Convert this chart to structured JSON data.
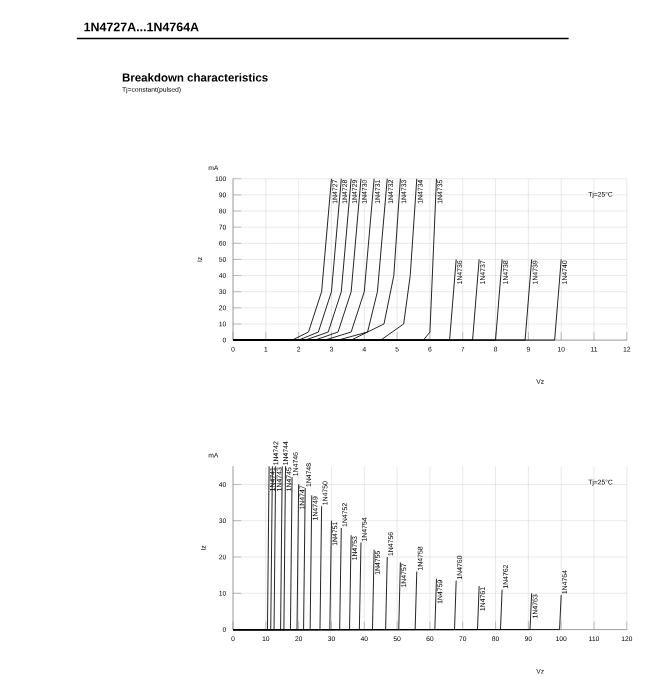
{
  "chart_data": [
    {
      "type": "line",
      "title": "Breakdown characteristics",
      "subtitle": "Tj=constant(pulsed)",
      "xlabel": "Vz",
      "ylabel": "Iz",
      "annotations": [
        "1N4727A...1N4764A",
        "mA",
        "Tj=25°C"
      ],
      "xlim": [
        0,
        12
      ],
      "ylim": [
        0,
        100
      ],
      "xticks": [
        0,
        1,
        2,
        3,
        4,
        5,
        6,
        7,
        8,
        9,
        10,
        11,
        12
      ],
      "yticks": [
        0,
        10,
        20,
        30,
        40,
        50,
        60,
        70,
        80,
        90,
        100
      ],
      "grid": true,
      "series": [
        {
          "name": "1N4727",
          "color": "#000000",
          "x": [
            0,
            1.8,
            2.3,
            2.7,
            3.0
          ],
          "values": [
            0,
            0,
            5,
            30,
            100
          ]
        },
        {
          "name": "1N4728",
          "color": "#000000",
          "x": [
            0,
            2.0,
            2.6,
            3.0,
            3.3
          ],
          "values": [
            0,
            0,
            5,
            30,
            100
          ]
        },
        {
          "name": "1N4729",
          "color": "#000000",
          "x": [
            0,
            2.2,
            2.9,
            3.3,
            3.6
          ],
          "values": [
            0,
            0,
            5,
            30,
            100
          ]
        },
        {
          "name": "1N4730",
          "color": "#000000",
          "x": [
            0,
            2.5,
            3.2,
            3.6,
            3.9
          ],
          "values": [
            0,
            0,
            5,
            30,
            100
          ]
        },
        {
          "name": "1N4731",
          "color": "#000000",
          "x": [
            0,
            2.8,
            3.6,
            4.0,
            4.3
          ],
          "values": [
            0,
            0,
            5,
            30,
            100
          ]
        },
        {
          "name": "1N4732",
          "color": "#000000",
          "x": [
            0,
            3.2,
            4.1,
            4.4,
            4.7
          ],
          "values": [
            0,
            0,
            5,
            30,
            100
          ]
        },
        {
          "name": "1N4733",
          "color": "#000000",
          "x": [
            0,
            3.6,
            4.6,
            4.9,
            5.1
          ],
          "values": [
            0,
            0,
            10,
            40,
            100
          ]
        },
        {
          "name": "1N4734",
          "color": "#000000",
          "x": [
            0,
            4.5,
            5.2,
            5.4,
            5.6
          ],
          "values": [
            0,
            0,
            10,
            40,
            100
          ]
        },
        {
          "name": "1N4735",
          "color": "#000000",
          "x": [
            0,
            5.8,
            6.0,
            6.2
          ],
          "values": [
            0,
            0,
            5,
            100
          ]
        },
        {
          "name": "1N4736",
          "color": "#000000",
          "x": [
            0,
            6.6,
            6.8
          ],
          "values": [
            0,
            0,
            50
          ]
        },
        {
          "name": "1N4737",
          "color": "#000000",
          "x": [
            0,
            7.3,
            7.5
          ],
          "values": [
            0,
            0,
            50
          ]
        },
        {
          "name": "1N4738",
          "color": "#000000",
          "x": [
            0,
            8.0,
            8.2
          ],
          "values": [
            0,
            0,
            50
          ]
        },
        {
          "name": "1N4739",
          "color": "#000000",
          "x": [
            0,
            8.9,
            9.1
          ],
          "values": [
            0,
            0,
            50
          ]
        },
        {
          "name": "1N4740",
          "color": "#000000",
          "x": [
            0,
            9.8,
            10.0
          ],
          "values": [
            0,
            0,
            50
          ]
        }
      ]
    },
    {
      "type": "line",
      "xlabel": "Vz",
      "ylabel": "Iz",
      "annotations": [
        "mA",
        "Tj=25°C"
      ],
      "xlim": [
        0,
        120
      ],
      "ylim": [
        0,
        45
      ],
      "xticks": [
        0,
        10,
        20,
        30,
        40,
        50,
        60,
        70,
        80,
        90,
        100,
        110,
        120
      ],
      "yticks": [
        0,
        10,
        20,
        30,
        40
      ],
      "grid": true,
      "series": [
        {
          "name": "1N4741",
          "color": "#000000",
          "x": [
            0,
            10.5,
            11
          ],
          "values": [
            0,
            0,
            45
          ]
        },
        {
          "name": "1N4742",
          "color": "#000000",
          "x": [
            0,
            11.5,
            12
          ],
          "values": [
            0,
            0,
            45
          ]
        },
        {
          "name": "1N4743",
          "color": "#000000",
          "x": [
            0,
            12.5,
            13
          ],
          "values": [
            0,
            0,
            45
          ]
        },
        {
          "name": "1N4744",
          "color": "#000000",
          "x": [
            0,
            14.5,
            15
          ],
          "values": [
            0,
            0,
            45
          ]
        },
        {
          "name": "1N4745",
          "color": "#000000",
          "x": [
            0,
            15.5,
            16
          ],
          "values": [
            0,
            0,
            45
          ]
        },
        {
          "name": "1N4746",
          "color": "#000000",
          "x": [
            0,
            17.5,
            18
          ],
          "values": [
            0,
            0,
            42
          ]
        },
        {
          "name": "1N4747",
          "color": "#000000",
          "x": [
            0,
            19.5,
            20
          ],
          "values": [
            0,
            0,
            40
          ]
        },
        {
          "name": "1N4748",
          "color": "#000000",
          "x": [
            0,
            21.5,
            22
          ],
          "values": [
            0,
            0,
            39
          ]
        },
        {
          "name": "1N4749",
          "color": "#000000",
          "x": [
            0,
            23.5,
            24
          ],
          "values": [
            0,
            0,
            37
          ]
        },
        {
          "name": "1N4750",
          "color": "#000000",
          "x": [
            0,
            26.5,
            27
          ],
          "values": [
            0,
            0,
            34
          ]
        },
        {
          "name": "1N4751",
          "color": "#000000",
          "x": [
            0,
            29.5,
            30
          ],
          "values": [
            0,
            0,
            30
          ]
        },
        {
          "name": "1N4752",
          "color": "#000000",
          "x": [
            0,
            32.5,
            33
          ],
          "values": [
            0,
            0,
            28
          ]
        },
        {
          "name": "1N4753",
          "color": "#000000",
          "x": [
            0,
            35.5,
            36
          ],
          "values": [
            0,
            0,
            26
          ]
        },
        {
          "name": "1N4754",
          "color": "#000000",
          "x": [
            0,
            38.5,
            39
          ],
          "values": [
            0,
            0,
            24
          ]
        },
        {
          "name": "1N4755",
          "color": "#000000",
          "x": [
            0,
            42.5,
            43
          ],
          "values": [
            0,
            0,
            22
          ]
        },
        {
          "name": "1N4756",
          "color": "#000000",
          "x": [
            0,
            46.5,
            47
          ],
          "values": [
            0,
            0,
            20
          ]
        },
        {
          "name": "1N4757",
          "color": "#000000",
          "x": [
            0,
            50.5,
            51
          ],
          "values": [
            0,
            0,
            18.5
          ]
        },
        {
          "name": "1N4758",
          "color": "#000000",
          "x": [
            0,
            55.5,
            56
          ],
          "values": [
            0,
            0,
            16
          ]
        },
        {
          "name": "1N4759",
          "color": "#000000",
          "x": [
            0,
            61.5,
            62
          ],
          "values": [
            0,
            0,
            14
          ]
        },
        {
          "name": "1N4760",
          "color": "#000000",
          "x": [
            0,
            67.5,
            68
          ],
          "values": [
            0,
            0,
            13.5
          ]
        },
        {
          "name": "1N4761",
          "color": "#000000",
          "x": [
            0,
            74.5,
            75
          ],
          "values": [
            0,
            0,
            12
          ]
        },
        {
          "name": "1N4762",
          "color": "#000000",
          "x": [
            0,
            81.5,
            82
          ],
          "values": [
            0,
            0,
            11
          ]
        },
        {
          "name": "1N4763",
          "color": "#000000",
          "x": [
            0,
            90.5,
            91
          ],
          "values": [
            0,
            0,
            10
          ]
        },
        {
          "name": "1N4764",
          "color": "#000000",
          "x": [
            0,
            99.5,
            100
          ],
          "values": [
            0,
            0,
            9.5
          ]
        }
      ]
    }
  ]
}
